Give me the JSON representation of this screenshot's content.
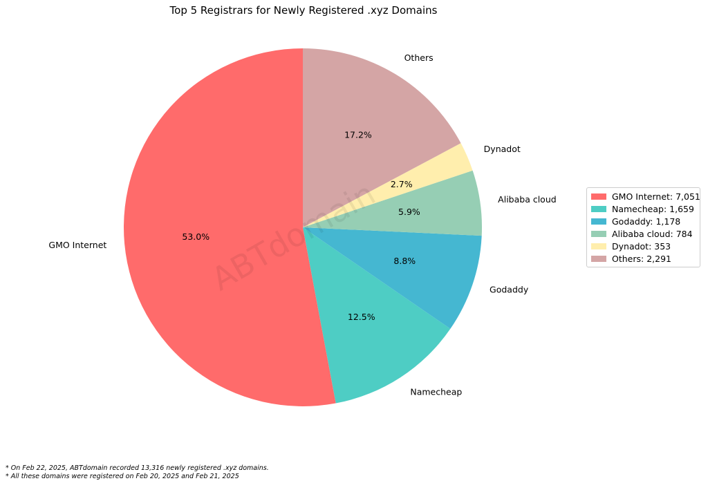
{
  "chart_data": {
    "type": "pie",
    "title": "Top 5 Registrars for Newly Registered .xyz Domains",
    "categories": [
      "GMO Internet",
      "Namecheap",
      "Godaddy",
      "Alibaba cloud",
      "Dynadot",
      "Others"
    ],
    "values": [
      7051,
      1659,
      1178,
      784,
      353,
      2291
    ],
    "percent_labels": [
      "53.0%",
      "12.5%",
      "8.8%",
      "5.9%",
      "2.7%",
      "17.2%"
    ],
    "colors": [
      "#ff6b6b",
      "#4ecdc4",
      "#45b7d1",
      "#96ceb4",
      "#ffeead",
      "#d4a5a5"
    ],
    "legend": {
      "placement": "right",
      "entries": [
        "GMO Internet: 7,051",
        "Namecheap: 1,659",
        "Godaddy: 1,178",
        "Alibaba cloud: 784",
        "Dynadot: 353",
        "Others: 2,291"
      ]
    },
    "watermark": "ABTdomain",
    "start_angle_deg": 90,
    "direction": "counterclockwise"
  },
  "footnotes": [
    "* On Feb 22, 2025, ABTdomain recorded 13,316 newly registered .xyz domains.",
    "* All these domains were registered on Feb 20, 2025 and Feb 21, 2025"
  ]
}
